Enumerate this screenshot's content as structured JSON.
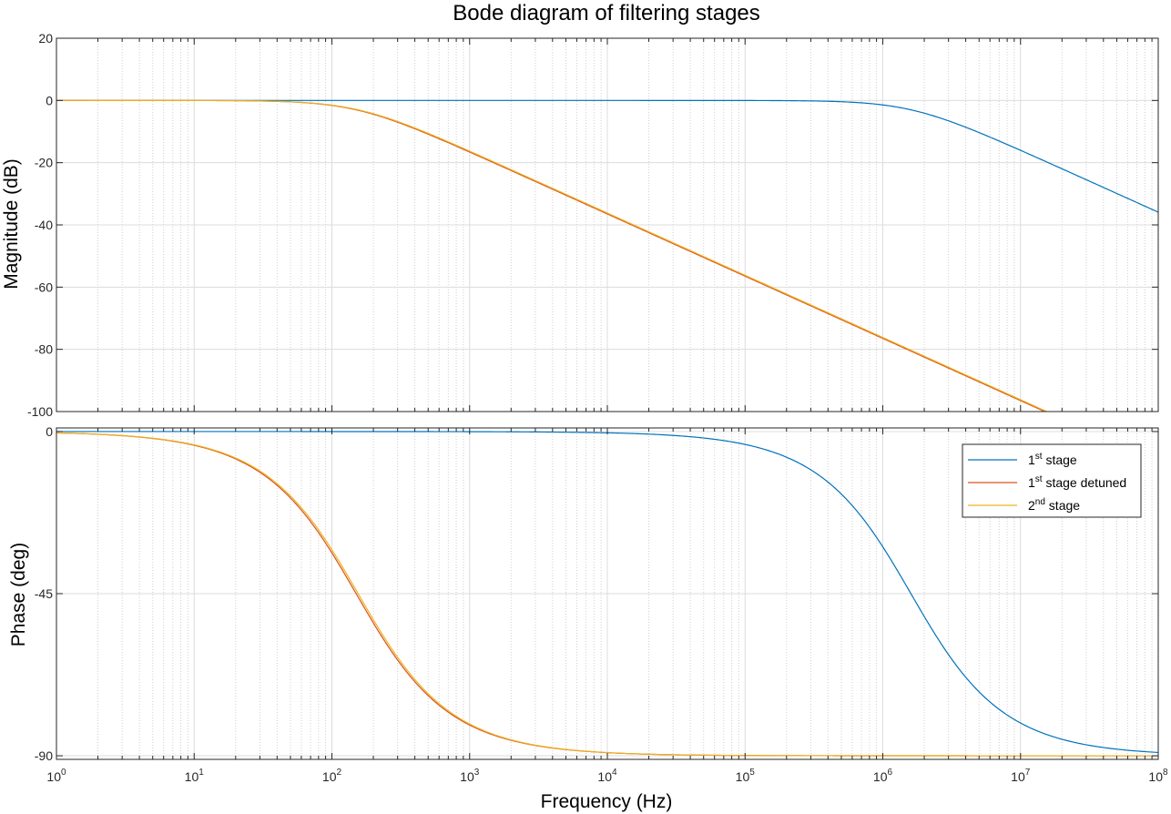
{
  "chart_data": {
    "type": "line",
    "title": "Bode diagram of filtering stages",
    "xlabel": "Frequency  (Hz)",
    "xscale": "log",
    "xlim": [
      1,
      100000000
    ],
    "x_ticks": [
      {
        "base": "10",
        "exp": "0"
      },
      {
        "base": "10",
        "exp": "1"
      },
      {
        "base": "10",
        "exp": "2"
      },
      {
        "base": "10",
        "exp": "3"
      },
      {
        "base": "10",
        "exp": "4"
      },
      {
        "base": "10",
        "exp": "5"
      },
      {
        "base": "10",
        "exp": "6"
      },
      {
        "base": "10",
        "exp": "7"
      },
      {
        "base": "10",
        "exp": "8"
      }
    ],
    "grid": true,
    "legend_position": "top-right",
    "magnitude_panel": {
      "ylabel": "Magnitude (dB)",
      "ylim": [
        -100,
        20
      ],
      "yticks": [
        20,
        0,
        -20,
        -40,
        -60,
        -80,
        -100
      ],
      "ytick_labels": [
        "20",
        "0",
        "-20",
        "-40",
        "-60",
        "-80",
        "-100"
      ]
    },
    "phase_panel": {
      "ylabel": "Phase (deg)",
      "ylim": [
        -91,
        1
      ],
      "yticks": [
        0,
        -45,
        -90
      ],
      "ytick_labels": [
        "0",
        "-45",
        "-90"
      ]
    },
    "series": [
      {
        "name": "1st stage",
        "color": "#0072BD",
        "cutoff_hz": 1600000
      },
      {
        "name": "1st stage detuned",
        "color": "#D95319",
        "cutoff_hz": 150
      },
      {
        "name": "2nd stage",
        "color": "#EDB120",
        "cutoff_hz": 155
      }
    ],
    "legend": [
      {
        "base": "1",
        "sup": "st",
        "rest": " stage"
      },
      {
        "base": "1",
        "sup": "st",
        "rest": " stage detuned"
      },
      {
        "base": "2",
        "sup": "nd",
        "rest": " stage"
      }
    ]
  }
}
